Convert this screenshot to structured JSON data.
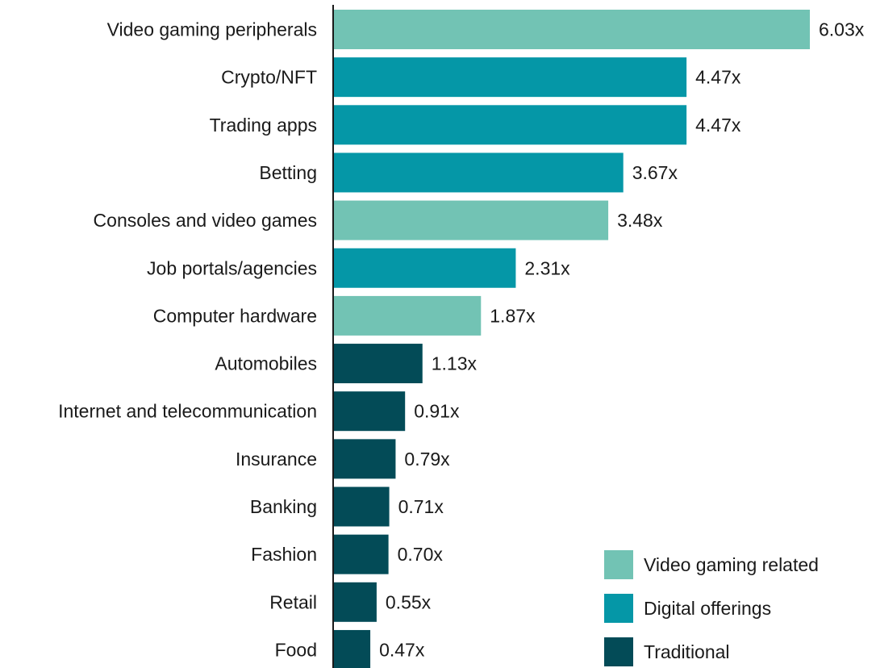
{
  "chart_data": {
    "type": "bar",
    "orientation": "horizontal",
    "categories": [
      "Video gaming peripherals",
      "Crypto/NFT",
      "Trading apps",
      "Betting",
      "Consoles and video games",
      "Job portals/agencies",
      "Computer hardware",
      "Automobiles",
      "Internet and telecommunication",
      "Insurance",
      "Banking",
      "Fashion",
      "Retail",
      "Food"
    ],
    "values": [
      6.03,
      4.47,
      4.47,
      3.67,
      3.48,
      2.31,
      1.87,
      1.13,
      0.91,
      0.79,
      0.71,
      0.7,
      0.55,
      0.47
    ],
    "value_labels": [
      "6.03x",
      "4.47x",
      "4.47x",
      "3.67x",
      "3.48x",
      "2.31x",
      "1.87x",
      "1.13x",
      "0.91x",
      "0.79x",
      "0.71x",
      "0.70x",
      "0.55x",
      "0.47x"
    ],
    "groups": [
      "Video gaming related",
      "Digital offerings",
      "Digital offerings",
      "Digital offerings",
      "Video gaming related",
      "Digital offerings",
      "Video gaming related",
      "Traditional",
      "Traditional",
      "Traditional",
      "Traditional",
      "Traditional",
      "Traditional",
      "Traditional"
    ],
    "legend": [
      {
        "name": "Video gaming related",
        "color": "#72c3b4"
      },
      {
        "name": "Digital offerings",
        "color": "#0597a7"
      },
      {
        "name": "Traditional",
        "color": "#034b57"
      }
    ],
    "legend_position": "bottom-right",
    "xlim": [
      0,
      6.03
    ],
    "grid": false,
    "title": "",
    "xlabel": "",
    "ylabel": ""
  }
}
